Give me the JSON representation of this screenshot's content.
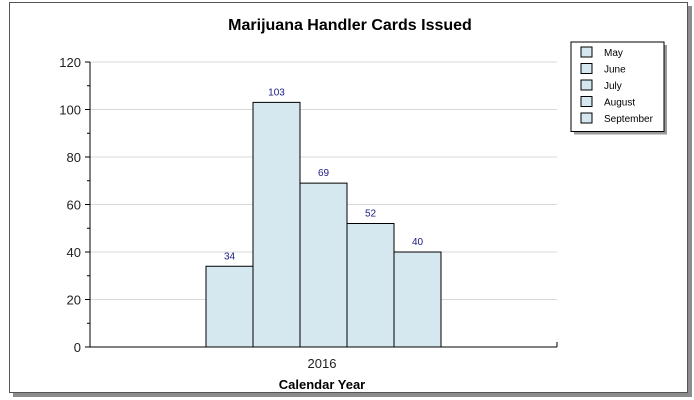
{
  "chart_data": {
    "type": "bar",
    "title": "Marijuana Handler Cards Issued",
    "xlabel": "Calendar Year",
    "ylabel": "",
    "categories": [
      "2016"
    ],
    "series": [
      {
        "name": "May",
        "values": [
          34
        ]
      },
      {
        "name": "June",
        "values": [
          103
        ]
      },
      {
        "name": "July",
        "values": [
          69
        ]
      },
      {
        "name": "August",
        "values": [
          52
        ]
      },
      {
        "name": "September",
        "values": [
          40
        ]
      }
    ],
    "ylim": [
      0,
      120
    ],
    "yticks": [
      0,
      20,
      40,
      60,
      80,
      100,
      120
    ],
    "grid": true,
    "legend_position": "top-right",
    "bar_color": "#d5e8f0",
    "bar_stroke": "#000000",
    "label_color": "#1a1a80"
  }
}
